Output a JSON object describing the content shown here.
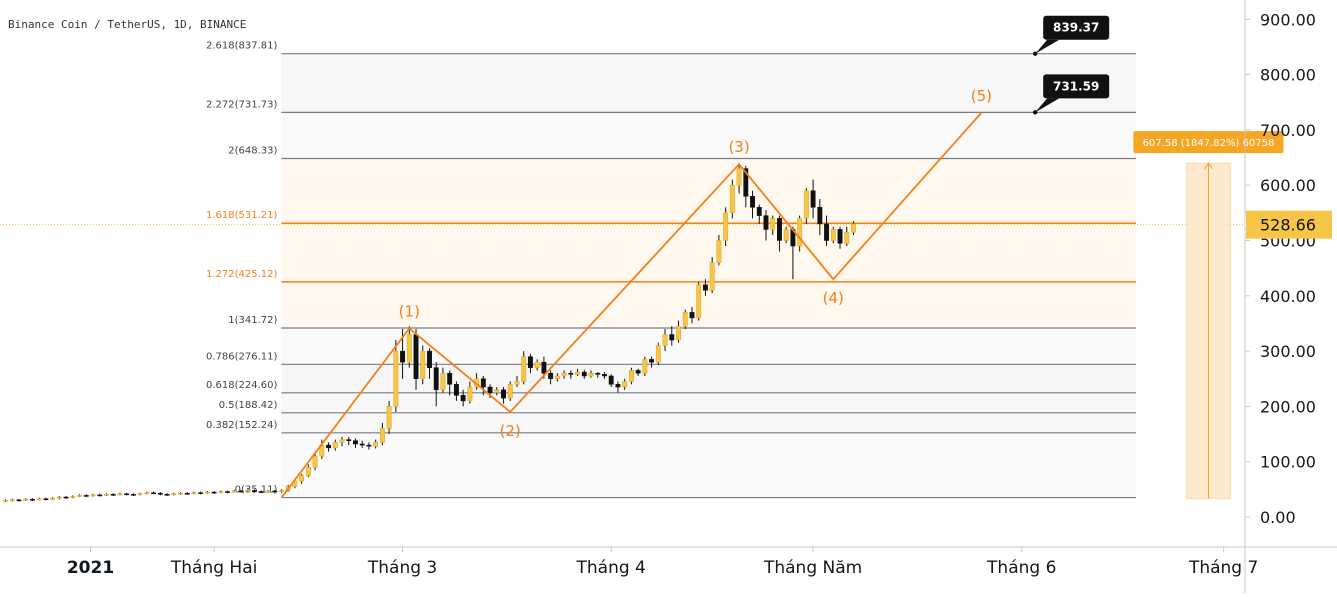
{
  "chart_data": {
    "type": "candlestick",
    "title": "Binance Coin / TetherUS, 1D, BINANCE",
    "ylim": [
      -60,
      900
    ],
    "y_ticks": [
      {
        "value": 900,
        "label": "900.00"
      },
      {
        "value": 800,
        "label": "800.00"
      },
      {
        "value": 700,
        "label": "700.00"
      },
      {
        "value": 600,
        "label": "600.00"
      },
      {
        "value": 500,
        "label": "500.00"
      },
      {
        "value": 400,
        "label": "400.00"
      },
      {
        "value": 300,
        "label": "300.00"
      },
      {
        "value": 200,
        "label": "200.00"
      },
      {
        "value": 100,
        "label": "100.00"
      },
      {
        "value": 0,
        "label": "0.00"
      }
    ],
    "x_ticks": [
      {
        "day": 0,
        "label": "2021",
        "bold": true
      },
      {
        "day": 31,
        "label": "Tháng Hai",
        "bold": false
      },
      {
        "day": 59,
        "label": "Tháng 3",
        "bold": false
      },
      {
        "day": 90,
        "label": "Tháng 4",
        "bold": false
      },
      {
        "day": 120,
        "label": "Tháng Năm",
        "bold": false
      },
      {
        "day": 151,
        "label": "Tháng 6",
        "bold": false
      },
      {
        "day": 181,
        "label": "Tháng 7",
        "bold": false
      }
    ],
    "colors": {
      "up_candle": "#f7c548",
      "down_candle": "#111111",
      "fib_gray": "#787b86",
      "fib_highlight": "#f57f17",
      "wave": "#f57f17",
      "price_label_bg": "#f7c548",
      "measure_bg": "#f5a623",
      "measure_fill": "#fde3c0"
    },
    "current_price": {
      "value": 528.66,
      "label": "528.66"
    },
    "fib_levels": [
      {
        "value": 35.11,
        "label": "0(35.11)",
        "highlight": false
      },
      {
        "value": 152.24,
        "label": "0.382(152.24)",
        "highlight": false
      },
      {
        "value": 188.42,
        "label": "0.5(188.42)",
        "highlight": false
      },
      {
        "value": 224.6,
        "label": "0.618(224.60)",
        "highlight": false
      },
      {
        "value": 276.11,
        "label": "0.786(276.11)",
        "highlight": false
      },
      {
        "value": 341.72,
        "label": "1(341.72)",
        "highlight": false
      },
      {
        "value": 425.12,
        "label": "1.272(425.12)",
        "highlight": true
      },
      {
        "value": 531.21,
        "label": "1.618(531.21)",
        "highlight": true
      },
      {
        "value": 648.33,
        "label": "2(648.33)",
        "highlight": false
      },
      {
        "value": 731.73,
        "label": "2.272(731.73)",
        "highlight": false
      },
      {
        "value": 837.81,
        "label": "2.618(837.81)",
        "highlight": false
      }
    ],
    "fib_range_days": [
      41,
      168
    ],
    "wave_points": [
      {
        "day": 41,
        "value": 35,
        "label": ""
      },
      {
        "day": 60,
        "value": 341,
        "label": "(1)"
      },
      {
        "day": 75,
        "value": 190,
        "label": "(2)"
      },
      {
        "day": 109,
        "value": 638,
        "label": "(3)"
      },
      {
        "day": 123,
        "value": 430,
        "label": "(4)"
      },
      {
        "day": 145,
        "value": 731,
        "label": "(5)"
      }
    ],
    "target_callouts": [
      {
        "label": "839.37",
        "value": 837.81,
        "day": 153
      },
      {
        "label": "731.59",
        "value": 731.73,
        "day": 153
      }
    ],
    "measure": {
      "label": "607.58 (1847.82%) 60758",
      "from_value": 33,
      "to_value": 640,
      "day_start": 175.5,
      "day_end": 182
    },
    "candles": [
      [
        0,
        29,
        30,
        27,
        32
      ],
      [
        1,
        30,
        31,
        28,
        33
      ],
      [
        2,
        31,
        30,
        28,
        33
      ],
      [
        3,
        30,
        32,
        29,
        34
      ],
      [
        4,
        32,
        31,
        29,
        34
      ],
      [
        5,
        31,
        33,
        30,
        35
      ],
      [
        6,
        33,
        32,
        30,
        35
      ],
      [
        7,
        32,
        34,
        31,
        36
      ],
      [
        8,
        34,
        36,
        32,
        38
      ],
      [
        9,
        36,
        35,
        33,
        38
      ],
      [
        10,
        35,
        37,
        34,
        39
      ],
      [
        11,
        37,
        39,
        36,
        41
      ],
      [
        12,
        39,
        38,
        36,
        41
      ],
      [
        13,
        38,
        40,
        37,
        42
      ],
      [
        14,
        40,
        39,
        37,
        42
      ],
      [
        15,
        39,
        41,
        38,
        43
      ],
      [
        16,
        41,
        40,
        38,
        43
      ],
      [
        17,
        40,
        42,
        39,
        44
      ],
      [
        18,
        42,
        41,
        39,
        44
      ],
      [
        19,
        41,
        40,
        38,
        43
      ],
      [
        20,
        40,
        42,
        39,
        44
      ],
      [
        21,
        42,
        44,
        41,
        46
      ],
      [
        22,
        44,
        43,
        41,
        46
      ],
      [
        23,
        43,
        41,
        39,
        45
      ],
      [
        24,
        41,
        40,
        38,
        43
      ],
      [
        25,
        40,
        42,
        39,
        44
      ],
      [
        26,
        42,
        43,
        40,
        45
      ],
      [
        27,
        43,
        42,
        40,
        45
      ],
      [
        28,
        42,
        44,
        41,
        46
      ],
      [
        29,
        44,
        43,
        41,
        46
      ],
      [
        30,
        43,
        45,
        42,
        47
      ],
      [
        31,
        45,
        44,
        42,
        47
      ],
      [
        32,
        44,
        46,
        43,
        48
      ],
      [
        33,
        46,
        45,
        43,
        48
      ],
      [
        34,
        45,
        47,
        44,
        49
      ],
      [
        35,
        47,
        46,
        44,
        49
      ],
      [
        36,
        46,
        48,
        45,
        50
      ],
      [
        37,
        48,
        46,
        44,
        50
      ],
      [
        38,
        46,
        45,
        43,
        48
      ],
      [
        39,
        45,
        47,
        44,
        49
      ],
      [
        40,
        47,
        46,
        44,
        49
      ],
      [
        41,
        46,
        48,
        44,
        50
      ],
      [
        42,
        48,
        55,
        46,
        58
      ],
      [
        43,
        55,
        65,
        52,
        68
      ],
      [
        44,
        65,
        75,
        60,
        78
      ],
      [
        45,
        75,
        90,
        72,
        95
      ],
      [
        46,
        90,
        110,
        85,
        118
      ],
      [
        47,
        110,
        130,
        105,
        140
      ],
      [
        48,
        130,
        125,
        118,
        135
      ],
      [
        49,
        125,
        135,
        120,
        140
      ],
      [
        50,
        135,
        140,
        128,
        145
      ],
      [
        51,
        140,
        138,
        130,
        145
      ],
      [
        52,
        138,
        132,
        125,
        142
      ],
      [
        53,
        132,
        130,
        125,
        138
      ],
      [
        54,
        130,
        128,
        122,
        135
      ],
      [
        55,
        128,
        135,
        124,
        140
      ],
      [
        56,
        135,
        160,
        130,
        170
      ],
      [
        57,
        160,
        200,
        150,
        210
      ],
      [
        58,
        200,
        300,
        190,
        320
      ],
      [
        59,
        300,
        280,
        250,
        340
      ],
      [
        60,
        280,
        330,
        270,
        345
      ],
      [
        61,
        330,
        250,
        230,
        340
      ],
      [
        62,
        250,
        300,
        240,
        310
      ],
      [
        63,
        300,
        270,
        250,
        305
      ],
      [
        64,
        270,
        230,
        200,
        280
      ],
      [
        65,
        230,
        260,
        225,
        270
      ],
      [
        66,
        260,
        240,
        220,
        265
      ],
      [
        67,
        240,
        220,
        210,
        245
      ],
      [
        68,
        220,
        210,
        200,
        230
      ],
      [
        69,
        210,
        235,
        205,
        245
      ],
      [
        70,
        235,
        250,
        230,
        260
      ],
      [
        71,
        250,
        235,
        220,
        255
      ],
      [
        72,
        235,
        225,
        215,
        240
      ],
      [
        73,
        225,
        230,
        220,
        235
      ],
      [
        74,
        230,
        215,
        205,
        235
      ],
      [
        75,
        215,
        240,
        210,
        245
      ],
      [
        76,
        240,
        245,
        235,
        255
      ],
      [
        77,
        245,
        290,
        240,
        300
      ],
      [
        78,
        290,
        270,
        260,
        295
      ],
      [
        79,
        270,
        280,
        265,
        285
      ],
      [
        80,
        280,
        260,
        250,
        290
      ],
      [
        81,
        260,
        250,
        240,
        265
      ],
      [
        82,
        250,
        255,
        245,
        260
      ],
      [
        83,
        255,
        260,
        250,
        265
      ],
      [
        84,
        260,
        258,
        250,
        265
      ],
      [
        85,
        258,
        262,
        255,
        268
      ],
      [
        86,
        262,
        255,
        250,
        266
      ],
      [
        87,
        255,
        260,
        252,
        265
      ],
      [
        88,
        260,
        258,
        252,
        262
      ],
      [
        89,
        258,
        255,
        250,
        262
      ],
      [
        90,
        255,
        240,
        235,
        258
      ],
      [
        91,
        240,
        235,
        225,
        245
      ],
      [
        92,
        235,
        245,
        230,
        250
      ],
      [
        93,
        245,
        265,
        240,
        270
      ],
      [
        94,
        265,
        260,
        255,
        268
      ],
      [
        95,
        260,
        285,
        255,
        290
      ],
      [
        96,
        285,
        280,
        270,
        290
      ],
      [
        97,
        280,
        310,
        275,
        315
      ],
      [
        98,
        310,
        330,
        300,
        340
      ],
      [
        99,
        330,
        320,
        310,
        345
      ],
      [
        100,
        320,
        345,
        315,
        355
      ],
      [
        101,
        345,
        370,
        340,
        375
      ],
      [
        102,
        370,
        360,
        350,
        380
      ],
      [
        103,
        360,
        420,
        355,
        425
      ],
      [
        104,
        420,
        410,
        400,
        430
      ],
      [
        105,
        410,
        460,
        405,
        470
      ],
      [
        106,
        460,
        500,
        455,
        510
      ],
      [
        107,
        500,
        550,
        490,
        560
      ],
      [
        108,
        550,
        600,
        540,
        610
      ],
      [
        109,
        600,
        630,
        585,
        640
      ],
      [
        110,
        630,
        580,
        560,
        635
      ],
      [
        111,
        580,
        560,
        540,
        590
      ],
      [
        112,
        560,
        545,
        530,
        565
      ],
      [
        113,
        545,
        520,
        500,
        555
      ],
      [
        114,
        520,
        540,
        510,
        545
      ],
      [
        115,
        540,
        500,
        480,
        545
      ],
      [
        116,
        500,
        520,
        495,
        525
      ],
      [
        117,
        520,
        490,
        430,
        525
      ],
      [
        118,
        490,
        540,
        480,
        545
      ],
      [
        119,
        540,
        590,
        530,
        595
      ],
      [
        120,
        590,
        560,
        540,
        610
      ],
      [
        121,
        560,
        530,
        510,
        575
      ],
      [
        122,
        530,
        500,
        490,
        545
      ],
      [
        123,
        500,
        520,
        495,
        525
      ],
      [
        124,
        520,
        495,
        485,
        525
      ],
      [
        125,
        495,
        515,
        490,
        525
      ],
      [
        126,
        515,
        530,
        510,
        535
      ]
    ]
  }
}
